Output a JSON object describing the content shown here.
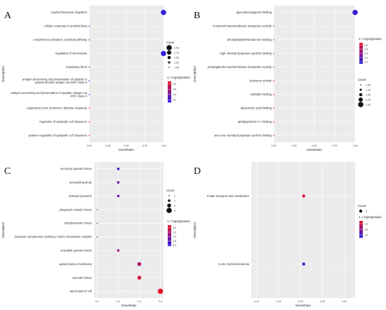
{
  "chart_data": [
    {
      "panel_label": "A",
      "type": "scatter",
      "xlabel": "GeneRatio",
      "ylabel": "Description",
      "xlim": [
        0,
        1
      ],
      "xticks": [
        "0.00",
        "0.25",
        "0.50",
        "0.75",
        "1.00"
      ],
      "xtick_values": [
        0,
        0.25,
        0.5,
        0.75,
        1.0
      ],
      "color_legend_title": "-1 × log10(pvalue)",
      "color_ticks": [
        "4.8",
        "4.6",
        "4.4",
        "4.2"
      ],
      "color_range": [
        4.1,
        4.9
      ],
      "size_legend_title": "Count",
      "size_ticks": [
        "2.00",
        "1.75",
        "1.50",
        "1.25",
        "1.00"
      ],
      "size_values": [
        2.0,
        1.75,
        1.5,
        1.25,
        1.0
      ],
      "categories": [
        "myeloid leukocyte migration",
        "cellular response to amyloid-beta",
        "complement activation, classical pathway",
        "regulation of chemotaxis",
        "respiratory burst",
        "antigen processing and presentation of peptide or polysaccharide antigen via MHC class II",
        "antigen processing and presentation of peptide antigen via MHC class II",
        "respiratory burst involved in defense response",
        "regulation of apoptotic cell clearance",
        "positive regulation of apoptotic cell clearance"
      ],
      "x": [
        1.0,
        0.0,
        0.0,
        1.0,
        0.0,
        0.0,
        0.0,
        0.0,
        0.0,
        0.0
      ],
      "count": [
        2,
        1,
        1,
        2,
        1,
        1,
        1,
        1,
        1,
        1
      ],
      "color_value": [
        4.15,
        4.2,
        4.2,
        4.15,
        4.3,
        4.2,
        4.2,
        4.8,
        4.8,
        4.8
      ],
      "grid": true
    },
    {
      "panel_label": "B",
      "type": "scatter",
      "xlabel": "GeneRatio",
      "ylabel": "Description",
      "xlim": [
        0,
        1
      ],
      "xticks": [
        "0.00",
        "0.25",
        "0.50",
        "0.75",
        "1.00"
      ],
      "xtick_values": [
        0,
        0.25,
        0.5,
        0.75,
        1.0
      ],
      "color_legend_title": "-1 × log10(pvalue)",
      "color_ticks": [
        "2.6",
        "2.5",
        "2.4",
        "2.3",
        "2.2"
      ],
      "color_range": [
        2.15,
        2.65
      ],
      "size_legend_title": "Count",
      "size_ticks": [
        "1.00",
        "1.25",
        "1.50",
        "1.75",
        "2.00"
      ],
      "size_values": [
        1.0,
        1.25,
        1.5,
        1.75,
        2.0
      ],
      "categories": [
        "glycosaminoglycan binding",
        "icosanoid transmembrane transporter activity",
        "phosphatidylethanolamine binding",
        "high−density lipoprotein particle binding",
        "prostaglandin transmembrane transporter activity",
        "lysozyme activity",
        "sulfatide binding",
        "lipoteichoic acid binding",
        "apolipoprotein A−I binding",
        "very−low−density lipoprotein particle binding"
      ],
      "x": [
        1.0,
        0.0,
        0.0,
        0.0,
        0.0,
        0.0,
        0.0,
        0.0,
        0.0,
        0.0
      ],
      "count": [
        2,
        1,
        1,
        1,
        1,
        1,
        1,
        1,
        1,
        1
      ],
      "color_value": [
        2.2,
        2.25,
        2.3,
        2.4,
        2.45,
        2.6,
        2.6,
        2.6,
        2.6,
        2.6
      ],
      "grid": true
    },
    {
      "panel_label": "C",
      "type": "scatter",
      "xlabel": "GeneRatio",
      "ylabel": "Description",
      "xlim": [
        0.085,
        0.415
      ],
      "xticks": [
        "0.1",
        "0.2",
        "0.3",
        "0.4"
      ],
      "xtick_values": [
        0.1,
        0.2,
        0.3,
        0.4
      ],
      "color_legend_title": "-1 × log10(pvalue)",
      "color_ticks": [
        "4.0",
        "3.5",
        "3.0",
        "2.5",
        "2.0"
      ],
      "color_range": [
        1.9,
        4.3
      ],
      "size_legend_title": "Count",
      "size_ticks": [
        "1",
        "2",
        "3",
        "4"
      ],
      "size_values": [
        1,
        2,
        3,
        4
      ],
      "categories": [
        "secretory granule lumen",
        "azurophil granule",
        "primary lysosome",
        "phagocytic vesicle lumen",
        "endolysosome lumen",
        "classical−complement−pathway C3/C5 convertase complex",
        "azurophil granule lumen",
        "apical plasma membrane",
        "vacuolar lumen",
        "apical part of cell"
      ],
      "x": [
        0.2,
        0.2,
        0.2,
        0.1,
        0.1,
        0.1,
        0.2,
        0.3,
        0.3,
        0.4
      ],
      "count": [
        2,
        2,
        2,
        1,
        1,
        1,
        2,
        3,
        3,
        4
      ],
      "color_value": [
        2.0,
        2.6,
        2.6,
        3.0,
        3.2,
        3.3,
        3.3,
        3.5,
        4.0,
        4.2
      ],
      "grid": true
    },
    {
      "panel_label": "D",
      "type": "scatter",
      "xlabel": "GeneRatio",
      "ylabel": "Description",
      "xlim": [
        0.115,
        0.21
      ],
      "xticks": [
        "0.12",
        "0.14",
        "0.16",
        "0.18",
        "0.20"
      ],
      "xtick_values": [
        0.12,
        0.14,
        0.16,
        0.18,
        0.2
      ],
      "color_legend_title": "-1 × log10(pvalue)",
      "color_ticks": [
        "1.8",
        "1.6",
        "1.4"
      ],
      "color_range": [
        1.3,
        1.9
      ],
      "size_legend_title": "Count",
      "size_ticks": [
        "5"
      ],
      "size_values": [
        5
      ],
      "categories": [
        "Folate transport and metabolism",
        "Acute myeloid leukemia"
      ],
      "x": [
        0.163,
        0.163
      ],
      "count": [
        5,
        5
      ],
      "color_value": [
        1.85,
        1.35
      ],
      "grid": true
    }
  ]
}
